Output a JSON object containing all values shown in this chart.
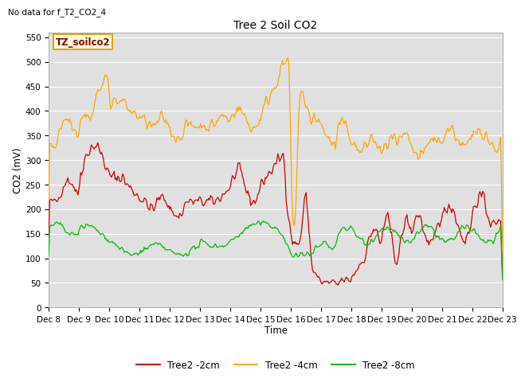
{
  "title": "Tree 2 Soil CO2",
  "subtitle": "No data for f_T2_CO2_4",
  "xlabel": "Time",
  "ylabel": "CO2 (mV)",
  "ylim": [
    0,
    560
  ],
  "yticks": [
    0,
    50,
    100,
    150,
    200,
    250,
    300,
    350,
    400,
    450,
    500,
    550
  ],
  "x_labels": [
    "Dec 8",
    "Dec 9",
    "Dec 10",
    "Dec 11",
    "Dec 12",
    "Dec 13",
    "Dec 14",
    "Dec 15",
    "Dec 16",
    "Dec 17",
    "Dec 18",
    "Dec 19",
    "Dec 20",
    "Dec 21",
    "Dec 22",
    "Dec 23"
  ],
  "legend_labels": [
    "Tree2 -2cm",
    "Tree2 -4cm",
    "Tree2 -8cm"
  ],
  "legend_colors": [
    "#cc0000",
    "#ffa500",
    "#00bb00"
  ],
  "annotation_text": "TZ_soilco2",
  "bg_color": "#e0e0e0",
  "line_colors": {
    "2cm": "#cc0000",
    "4cm": "#ffa500",
    "8cm": "#00bb00"
  },
  "figsize": [
    6.4,
    4.8
  ],
  "dpi": 100
}
